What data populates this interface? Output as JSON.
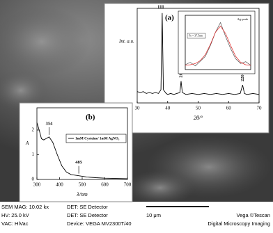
{
  "chart_data": [
    {
      "type": "line",
      "panel_label": "(a)",
      "xlabel": "2θ/°",
      "ylabel": "Int. a.u.",
      "x": [
        30,
        31,
        32,
        33,
        34,
        35,
        36,
        37,
        37.8,
        38.2,
        38.6,
        39.5,
        40,
        41,
        42,
        43,
        44,
        44.4,
        44.8,
        46,
        48,
        50,
        52,
        54,
        56,
        58,
        60,
        62,
        63.8,
        64.6,
        65.2,
        66,
        68,
        70
      ],
      "series": [
        {
          "color": "#000000",
          "values": [
            12,
            11,
            12,
            10,
            11,
            10,
            11,
            10,
            14,
            95,
            14,
            10,
            9,
            10,
            9,
            10,
            11,
            23,
            11,
            9,
            10,
            9,
            10,
            9,
            10,
            9,
            10,
            9,
            10,
            19,
            10,
            9,
            10,
            9
          ]
        }
      ],
      "xlim": [
        30,
        70
      ],
      "ylim": [
        0,
        100
      ],
      "xticks": [
        30,
        40,
        50,
        60,
        70
      ],
      "peak_labels": [
        "111",
        "200",
        "220"
      ]
    },
    {
      "type": "line",
      "panel_label": "(b)",
      "xlabel": "λ/nm",
      "ylabel": "A",
      "x": [
        300,
        310,
        320,
        330,
        340,
        354,
        370,
        390,
        410,
        430,
        450,
        485,
        520,
        560,
        600,
        650,
        700
      ],
      "series": [
        {
          "name": "1mM Cysteine/ 1mM AgNO₃",
          "color": "#000000",
          "values": [
            2.3,
            2.0,
            1.65,
            1.6,
            1.65,
            1.72,
            1.5,
            1.0,
            0.55,
            0.3,
            0.2,
            0.15,
            0.1,
            0.07,
            0.05,
            0.04,
            0.03
          ]
        }
      ],
      "xlim": [
        300,
        700
      ],
      "ylim": [
        0,
        2.9
      ],
      "xticks": [
        300,
        400,
        500,
        600,
        700
      ],
      "yticks": [
        0,
        1,
        2
      ],
      "peak_labels": [
        "354",
        "485"
      ]
    },
    {
      "type": "line",
      "annotation": "Fe = 37.5nm",
      "title": "Ag-peak",
      "x": [
        35,
        35.5,
        36,
        36.5,
        37,
        37.5,
        38,
        38.5,
        39,
        39.5,
        40,
        40.5,
        41,
        41.5
      ],
      "series": [
        {
          "color": "#555555",
          "values": [
            8,
            12,
            6,
            14,
            22,
            40,
            62,
            78,
            55,
            35,
            18,
            10,
            13,
            7
          ]
        },
        {
          "color": "#e02020",
          "values": [
            7,
            8,
            10,
            15,
            25,
            42,
            62,
            72,
            60,
            40,
            22,
            12,
            8,
            7
          ]
        }
      ],
      "xlim": [
        35,
        41.5
      ],
      "ylim": [
        0,
        90
      ]
    }
  ],
  "sem_info": {
    "mag": "SEM MAG: 10.02 kx",
    "det1": "DET: SE Detector",
    "hv": "HV: 25.0 kV",
    "det2": "DET: SE Detector",
    "scale": "10 μm",
    "brand": "Vega ©Tescan",
    "vac": "VAC: HiVac",
    "device": "Device: VEGA MV2300T/40",
    "imaging": "Digital Microscopy Imaging"
  }
}
